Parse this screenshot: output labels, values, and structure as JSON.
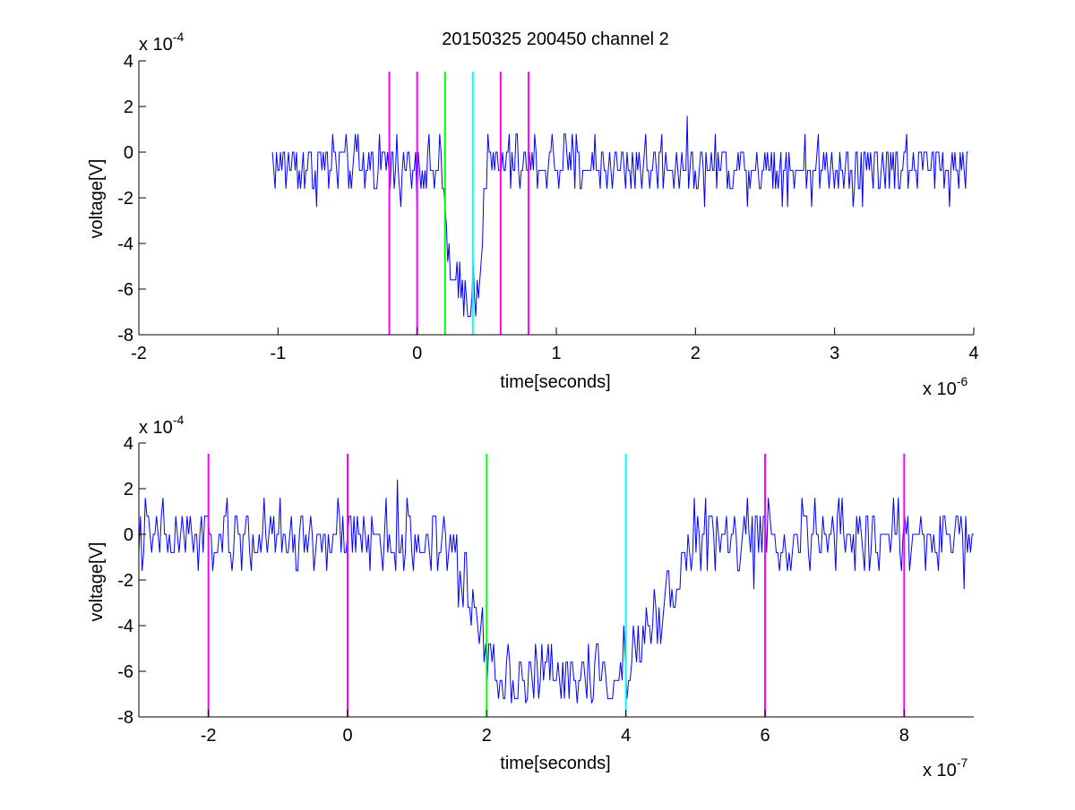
{
  "title": "20150325 200450 channel 2",
  "colors": {
    "trace": "#0000ff",
    "magenta": "#ff00ff",
    "green": "#00ff00",
    "cyan": "#00ffff",
    "axes": "#000000"
  },
  "chart_data": [
    {
      "type": "line",
      "title": "20150325 200450 channel 2",
      "xlabel": "time[seconds]",
      "ylabel": "voltage[V]",
      "x_exponent_label": "x 10",
      "x_exponent": "-6",
      "y_exponent_label": "x 10",
      "y_exponent": "-4",
      "xlim": [
        -2,
        4
      ],
      "ylim": [
        -8,
        4
      ],
      "xticks": [
        -2,
        -1,
        0,
        1,
        2,
        3,
        4
      ],
      "yticks": [
        -8,
        -6,
        -4,
        -2,
        0,
        2,
        4
      ],
      "grid": false,
      "series": [
        {
          "color": "#0000ff",
          "x_range": [
            -1.04,
            3.96
          ],
          "approx_baseline": -0.6,
          "noise_amplitude": 1.2,
          "dip": {
            "x_start": 0.17,
            "x_bottom_start": 0.25,
            "x_bottom_end": 0.43,
            "x_end": 0.5,
            "level": -6.2
          }
        }
      ],
      "vlines": [
        {
          "x": -0.2,
          "color": "#ff00ff"
        },
        {
          "x": 0.0,
          "color": "#ff00ff"
        },
        {
          "x": 0.2,
          "color": "#00ff00"
        },
        {
          "x": 0.4,
          "color": "#00ffff"
        },
        {
          "x": 0.6,
          "color": "#ff00ff"
        },
        {
          "x": 0.8,
          "color": "#ff00ff"
        }
      ]
    },
    {
      "type": "line",
      "xlabel": "time[seconds]",
      "ylabel": "voltage[V]",
      "x_exponent_label": "x 10",
      "x_exponent": "-7",
      "y_exponent_label": "x 10",
      "y_exponent": "-4",
      "xlim": [
        -3,
        9
      ],
      "ylim": [
        -8,
        4
      ],
      "xticks": [
        -2,
        0,
        2,
        4,
        6,
        8
      ],
      "yticks": [
        -8,
        -6,
        -4,
        -2,
        0,
        2,
        4
      ],
      "grid": false,
      "series": [
        {
          "color": "#0000ff",
          "x_range": [
            -3,
            9
          ],
          "approx_baseline": -0.2,
          "noise_amplitude": 1.4,
          "dip": {
            "x_start": 1.4,
            "x_bottom_start": 2.2,
            "x_bottom_end": 4.0,
            "x_end": 5.0,
            "level": -6.2
          }
        }
      ],
      "vlines": [
        {
          "x": -2,
          "color": "#ff00ff"
        },
        {
          "x": 0,
          "color": "#ff00ff"
        },
        {
          "x": 2,
          "color": "#00ff00"
        },
        {
          "x": 4,
          "color": "#00ffff"
        },
        {
          "x": 6,
          "color": "#ff00ff"
        },
        {
          "x": 8,
          "color": "#ff00ff"
        }
      ]
    }
  ]
}
